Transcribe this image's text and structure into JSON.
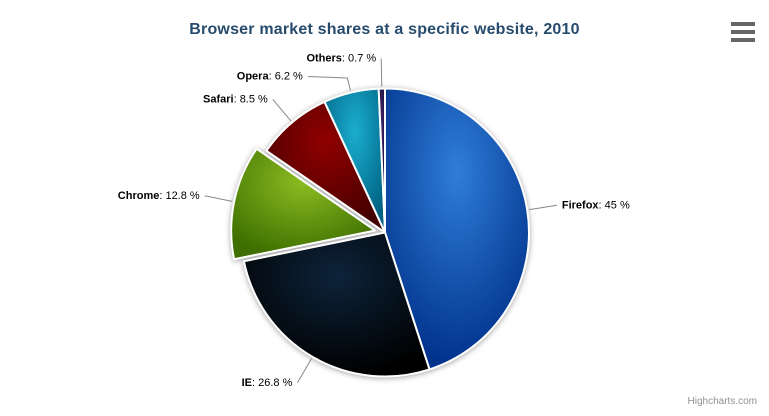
{
  "chart_data": {
    "type": "pie",
    "title": "Browser market shares at a specific website, 2010",
    "legend": "off",
    "grid": "off",
    "label_separator": ": ",
    "title_color": "#274b6d",
    "label_color": "#000000",
    "connector_color": "#888888",
    "border_color": "#ffffff",
    "slices": [
      {
        "name": "Firefox",
        "value": 45,
        "value_label": "45 %",
        "color": "#2f7ed8",
        "sliced": false
      },
      {
        "name": "IE",
        "value": 26.8,
        "value_label": "26.8 %",
        "color": "#0d233a",
        "sliced": false
      },
      {
        "name": "Chrome",
        "value": 12.8,
        "value_label": "12.8 %",
        "color": "#8bbc21",
        "sliced": true
      },
      {
        "name": "Safari",
        "value": 8.5,
        "value_label": "8.5 %",
        "color": "#910000",
        "sliced": false
      },
      {
        "name": "Opera",
        "value": 6.2,
        "value_label": "6.2 %",
        "color": "#1aadce",
        "sliced": false
      },
      {
        "name": "Others",
        "value": 0.7,
        "value_label": "0.7 %",
        "color": "#492970",
        "sliced": false
      }
    ]
  },
  "export_menu": {
    "icon": "hamburger-icon"
  },
  "credits": {
    "label": "Highcharts.com",
    "color": "#909090"
  }
}
